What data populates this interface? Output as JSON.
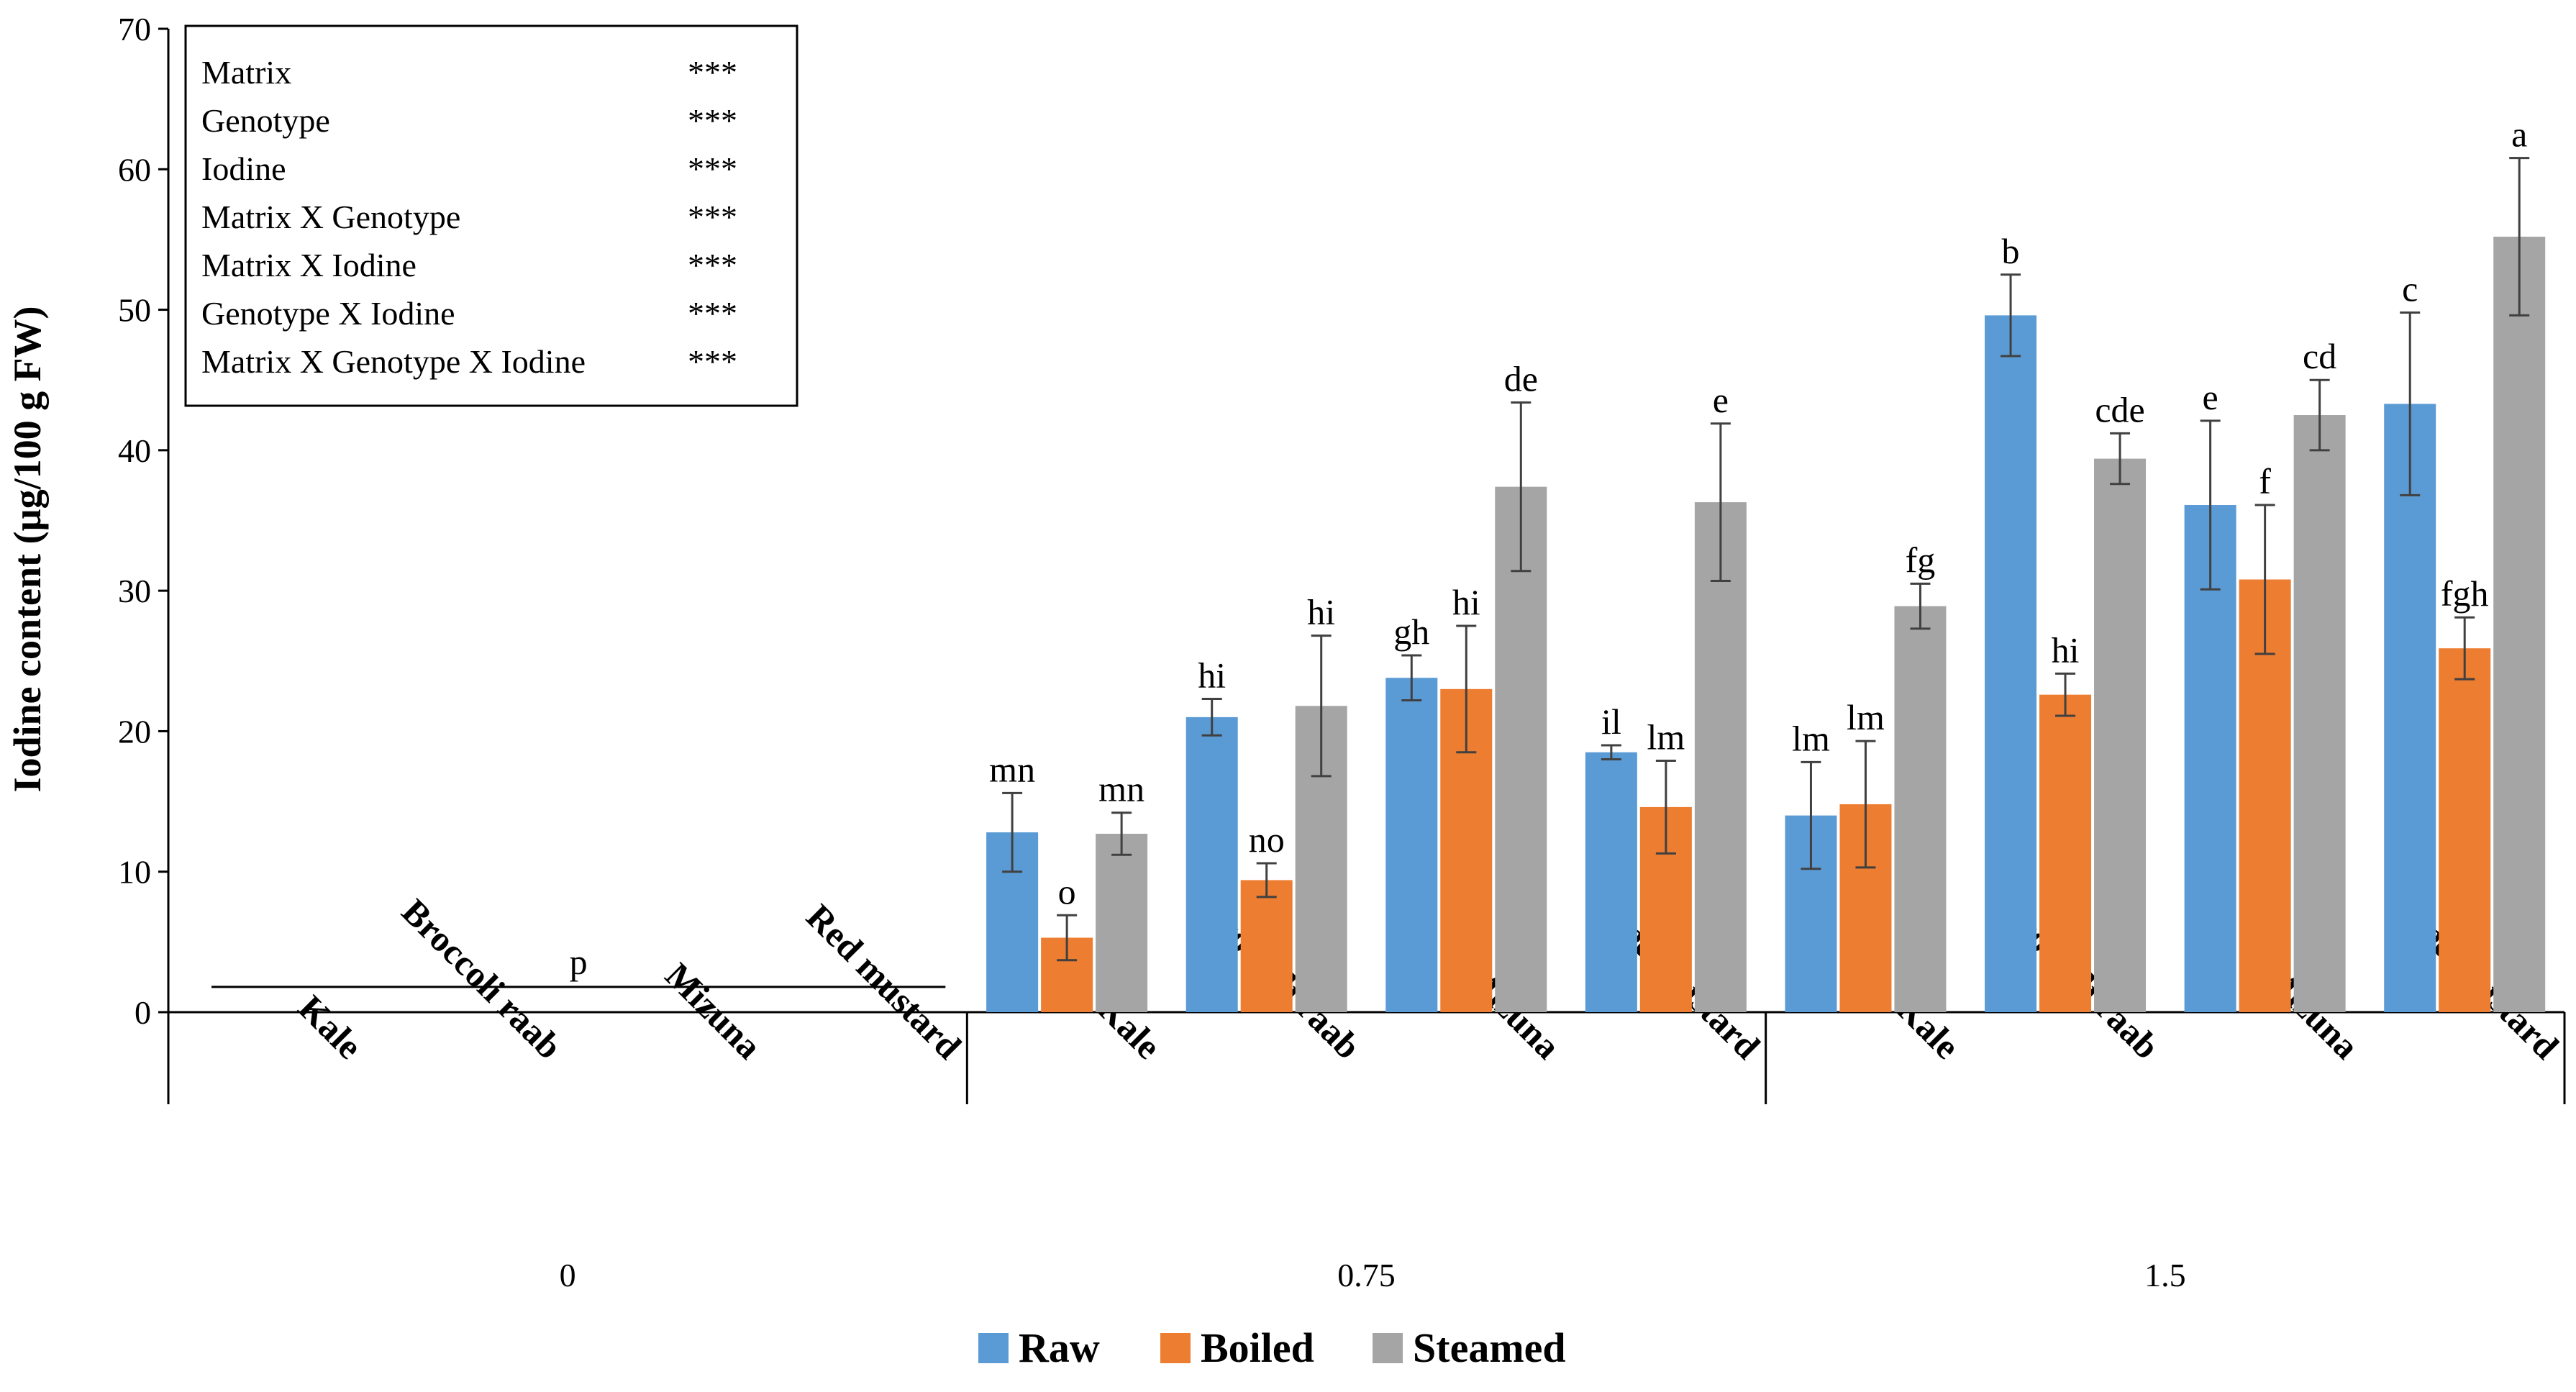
{
  "chart_data": {
    "type": "bar",
    "ylabel": "Iodine content (µg/100 g FW)",
    "ylim": [
      0,
      70
    ],
    "yticks": [
      0,
      10,
      20,
      30,
      40,
      50,
      60,
      70
    ],
    "groups": [
      {
        "label": "0",
        "categories": [
          "Kale",
          "Broccoli raab",
          "Mizuna",
          "Red mustard"
        ]
      },
      {
        "label": "0.75",
        "categories": [
          "Kale",
          "Broccoli raab",
          "Mizuna",
          "Red mustard"
        ]
      },
      {
        "label": "1.5",
        "categories": [
          "Kale",
          "Broccoli raab",
          "Mizuna",
          "Red mustard"
        ]
      }
    ],
    "zero_group_annotation": {
      "letter": "p",
      "value": 1.8
    },
    "series": [
      {
        "name": "Raw",
        "color": "#5b9bd5",
        "values": [
          12.8,
          21.0,
          23.8,
          18.5,
          14.0,
          49.6,
          36.1,
          43.3
        ],
        "errors": [
          2.8,
          1.3,
          1.6,
          0.5,
          3.8,
          2.9,
          6.0,
          6.5
        ],
        "letters": [
          "mn",
          "hi",
          "gh",
          "il",
          "lm",
          "b",
          "e",
          "c"
        ]
      },
      {
        "name": "Boiled",
        "color": "#ed7d31",
        "values": [
          5.3,
          9.4,
          23.0,
          14.6,
          14.8,
          22.6,
          30.8,
          25.9
        ],
        "errors": [
          1.6,
          1.2,
          4.5,
          3.3,
          4.5,
          1.5,
          5.3,
          2.2
        ],
        "letters": [
          "o",
          "no",
          "hi",
          "lm",
          "lm",
          "hi",
          "f",
          "fgh"
        ]
      },
      {
        "name": "Steamed",
        "color": "#a5a5a5",
        "values": [
          12.7,
          21.8,
          37.4,
          36.3,
          28.9,
          39.4,
          42.5,
          55.2
        ],
        "errors": [
          1.5,
          5.0,
          6.0,
          5.6,
          1.6,
          1.8,
          2.5,
          5.6
        ],
        "letters": [
          "mn",
          "hi",
          "de",
          "e",
          "fg",
          "cde",
          "cd",
          "a"
        ]
      }
    ],
    "stats_box": [
      {
        "term": "Matrix",
        "sig": "***"
      },
      {
        "term": "Genotype",
        "sig": "***"
      },
      {
        "term": "Iodine",
        "sig": "***"
      },
      {
        "term": "Matrix X Genotype",
        "sig": "***"
      },
      {
        "term": "Matrix X Iodine",
        "sig": "***"
      },
      {
        "term": "Genotype X Iodine",
        "sig": "***"
      },
      {
        "term": "Matrix X Genotype X Iodine",
        "sig": "***"
      }
    ],
    "legend": [
      "Raw",
      "Boiled",
      "Steamed"
    ],
    "legend_position": "bottom-center"
  }
}
